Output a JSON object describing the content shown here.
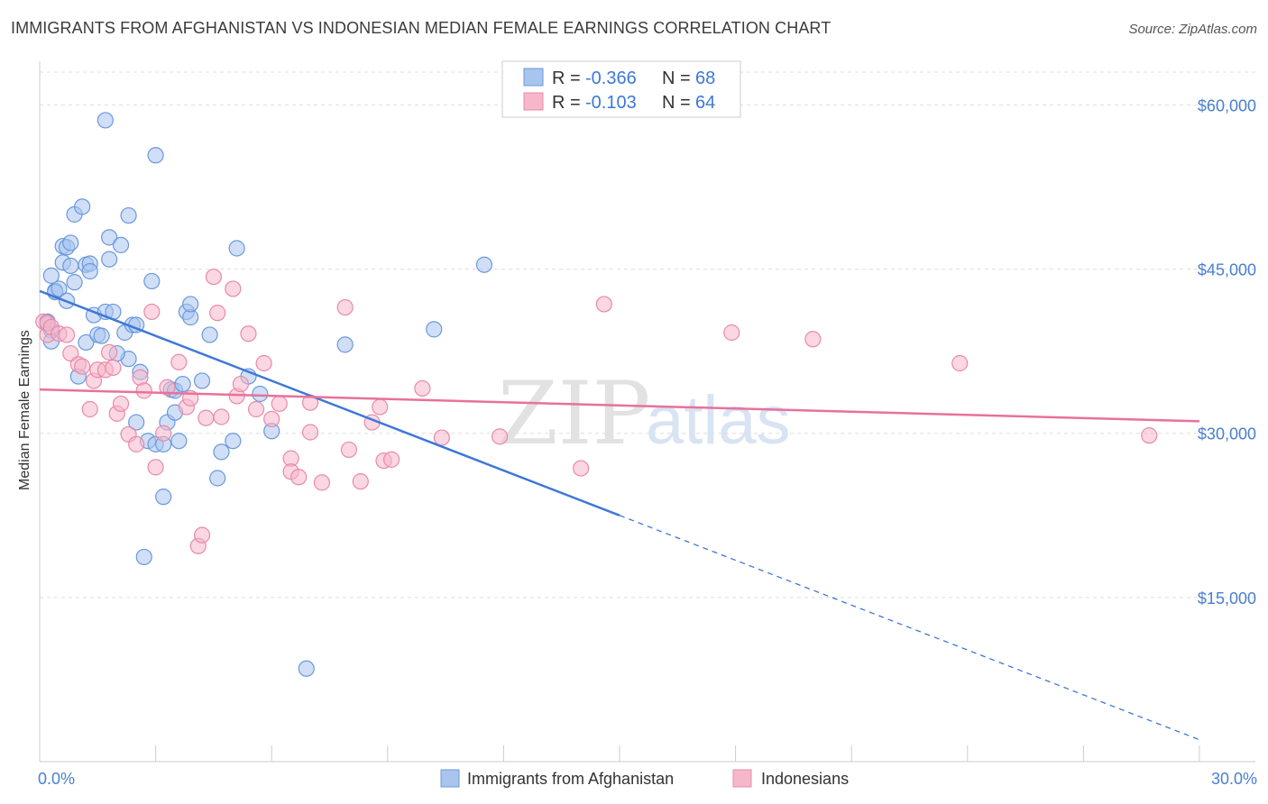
{
  "title": "IMMIGRANTS FROM AFGHANISTAN VS INDONESIAN MEDIAN FEMALE EARNINGS CORRELATION CHART",
  "source": "Source: ZipAtlas.com",
  "watermark": {
    "zip": "ZIP",
    "atlas": "atlas"
  },
  "colors": {
    "blue": "#3d78d8",
    "pink": "#e8719b",
    "blue_fill": "#a9c5ee",
    "pink_fill": "#f6b7cb",
    "grid": "#dddddd"
  },
  "chart_data": {
    "type": "scatter",
    "xlabel": "",
    "ylabel": "Median Female Earnings",
    "xlim": [
      0,
      30
    ],
    "ylim": [
      0,
      63000
    ],
    "x_tick_labels": [
      "0.0%",
      "30.0%"
    ],
    "y_ticks": [
      {
        "value": 15000,
        "label": "$15,000"
      },
      {
        "value": 30000,
        "label": "$30,000"
      },
      {
        "value": 45000,
        "label": "$45,000"
      },
      {
        "value": 60000,
        "label": "$60,000"
      }
    ],
    "legend_stats": [
      {
        "r_label": "R =",
        "r": "-0.366",
        "n_label": "N =",
        "n": "68"
      },
      {
        "r_label": "R =",
        "r": "-0.103",
        "n_label": "N =",
        "n": "64"
      }
    ],
    "series": [
      {
        "name": "Immigrants from Afghanistan",
        "color": "#3d78d8",
        "trend": {
          "x0": 0,
          "y0": 43000,
          "x1": 15,
          "y1": 22500,
          "dash_x1": 30,
          "dash_y1": 2000
        },
        "points": [
          [
            0.2,
            40200
          ],
          [
            0.2,
            40000
          ],
          [
            0.3,
            39400
          ],
          [
            0.3,
            38400
          ],
          [
            0.3,
            44400
          ],
          [
            0.4,
            43000
          ],
          [
            0.4,
            42900
          ],
          [
            0.5,
            43200
          ],
          [
            0.6,
            45600
          ],
          [
            0.6,
            47100
          ],
          [
            0.7,
            47000
          ],
          [
            0.7,
            42100
          ],
          [
            0.8,
            45300
          ],
          [
            0.8,
            47400
          ],
          [
            0.9,
            43800
          ],
          [
            0.9,
            50000
          ],
          [
            1.0,
            35200
          ],
          [
            1.1,
            50700
          ],
          [
            1.2,
            45400
          ],
          [
            1.2,
            38300
          ],
          [
            1.3,
            45500
          ],
          [
            1.3,
            44800
          ],
          [
            1.4,
            40800
          ],
          [
            1.5,
            39000
          ],
          [
            1.6,
            38900
          ],
          [
            1.7,
            41100
          ],
          [
            1.7,
            58600
          ],
          [
            1.8,
            47900
          ],
          [
            1.8,
            45900
          ],
          [
            1.9,
            41100
          ],
          [
            2.1,
            47200
          ],
          [
            2.2,
            39200
          ],
          [
            2.3,
            36800
          ],
          [
            2.3,
            49900
          ],
          [
            2.4,
            39900
          ],
          [
            2.5,
            39900
          ],
          [
            2.5,
            31000
          ],
          [
            2.6,
            35600
          ],
          [
            2.7,
            18700
          ],
          [
            2.8,
            29300
          ],
          [
            2.9,
            43900
          ],
          [
            3.0,
            55400
          ],
          [
            3.0,
            29000
          ],
          [
            3.2,
            29000
          ],
          [
            3.2,
            24200
          ],
          [
            3.3,
            31000
          ],
          [
            3.4,
            34000
          ],
          [
            3.5,
            33900
          ],
          [
            3.5,
            31900
          ],
          [
            3.6,
            29300
          ],
          [
            3.7,
            34500
          ],
          [
            3.8,
            41100
          ],
          [
            3.9,
            40600
          ],
          [
            3.9,
            41800
          ],
          [
            4.2,
            34800
          ],
          [
            4.4,
            39000
          ],
          [
            4.6,
            25900
          ],
          [
            4.7,
            28300
          ],
          [
            5.0,
            29300
          ],
          [
            5.1,
            46900
          ],
          [
            5.4,
            35200
          ],
          [
            6.0,
            30200
          ],
          [
            6.9,
            8500
          ],
          [
            7.9,
            38100
          ],
          [
            10.2,
            39500
          ],
          [
            11.5,
            45400
          ],
          [
            5.7,
            33600
          ],
          [
            2.0,
            37300
          ]
        ]
      },
      {
        "name": "Indonesians",
        "color": "#e8719b",
        "trend": {
          "x0": 0,
          "y0": 34000,
          "x1": 30,
          "y1": 31100
        },
        "points": [
          [
            0.1,
            40200
          ],
          [
            0.2,
            39000
          ],
          [
            0.2,
            40100
          ],
          [
            0.3,
            39700
          ],
          [
            0.5,
            39100
          ],
          [
            0.7,
            39000
          ],
          [
            0.8,
            37300
          ],
          [
            1.0,
            36300
          ],
          [
            1.1,
            36100
          ],
          [
            1.3,
            32200
          ],
          [
            1.4,
            34800
          ],
          [
            1.5,
            35800
          ],
          [
            1.7,
            35800
          ],
          [
            1.8,
            37400
          ],
          [
            2.0,
            31800
          ],
          [
            2.1,
            32700
          ],
          [
            2.3,
            29900
          ],
          [
            2.5,
            29000
          ],
          [
            2.6,
            35100
          ],
          [
            2.7,
            33900
          ],
          [
            2.9,
            41100
          ],
          [
            3.0,
            26900
          ],
          [
            3.2,
            30000
          ],
          [
            3.3,
            34200
          ],
          [
            3.6,
            36500
          ],
          [
            3.8,
            32400
          ],
          [
            3.9,
            33200
          ],
          [
            4.1,
            19700
          ],
          [
            4.2,
            20700
          ],
          [
            4.3,
            31400
          ],
          [
            4.5,
            44300
          ],
          [
            4.6,
            41000
          ],
          [
            4.7,
            31500
          ],
          [
            5.0,
            43200
          ],
          [
            5.1,
            33400
          ],
          [
            5.2,
            34500
          ],
          [
            5.4,
            39100
          ],
          [
            5.6,
            32200
          ],
          [
            5.8,
            36400
          ],
          [
            6.0,
            31300
          ],
          [
            6.2,
            32700
          ],
          [
            6.5,
            27700
          ],
          [
            6.5,
            26500
          ],
          [
            6.7,
            26000
          ],
          [
            7.0,
            30100
          ],
          [
            7.0,
            32800
          ],
          [
            7.3,
            25500
          ],
          [
            7.9,
            41500
          ],
          [
            8.0,
            28500
          ],
          [
            8.3,
            25600
          ],
          [
            8.6,
            31000
          ],
          [
            8.8,
            32400
          ],
          [
            8.9,
            27500
          ],
          [
            9.1,
            27600
          ],
          [
            9.9,
            34100
          ],
          [
            10.4,
            29600
          ],
          [
            11.9,
            29700
          ],
          [
            14.0,
            26800
          ],
          [
            14.6,
            41800
          ],
          [
            17.9,
            39200
          ],
          [
            20.0,
            38600
          ],
          [
            23.8,
            36400
          ],
          [
            28.7,
            29800
          ],
          [
            1.9,
            36000
          ]
        ]
      }
    ]
  }
}
